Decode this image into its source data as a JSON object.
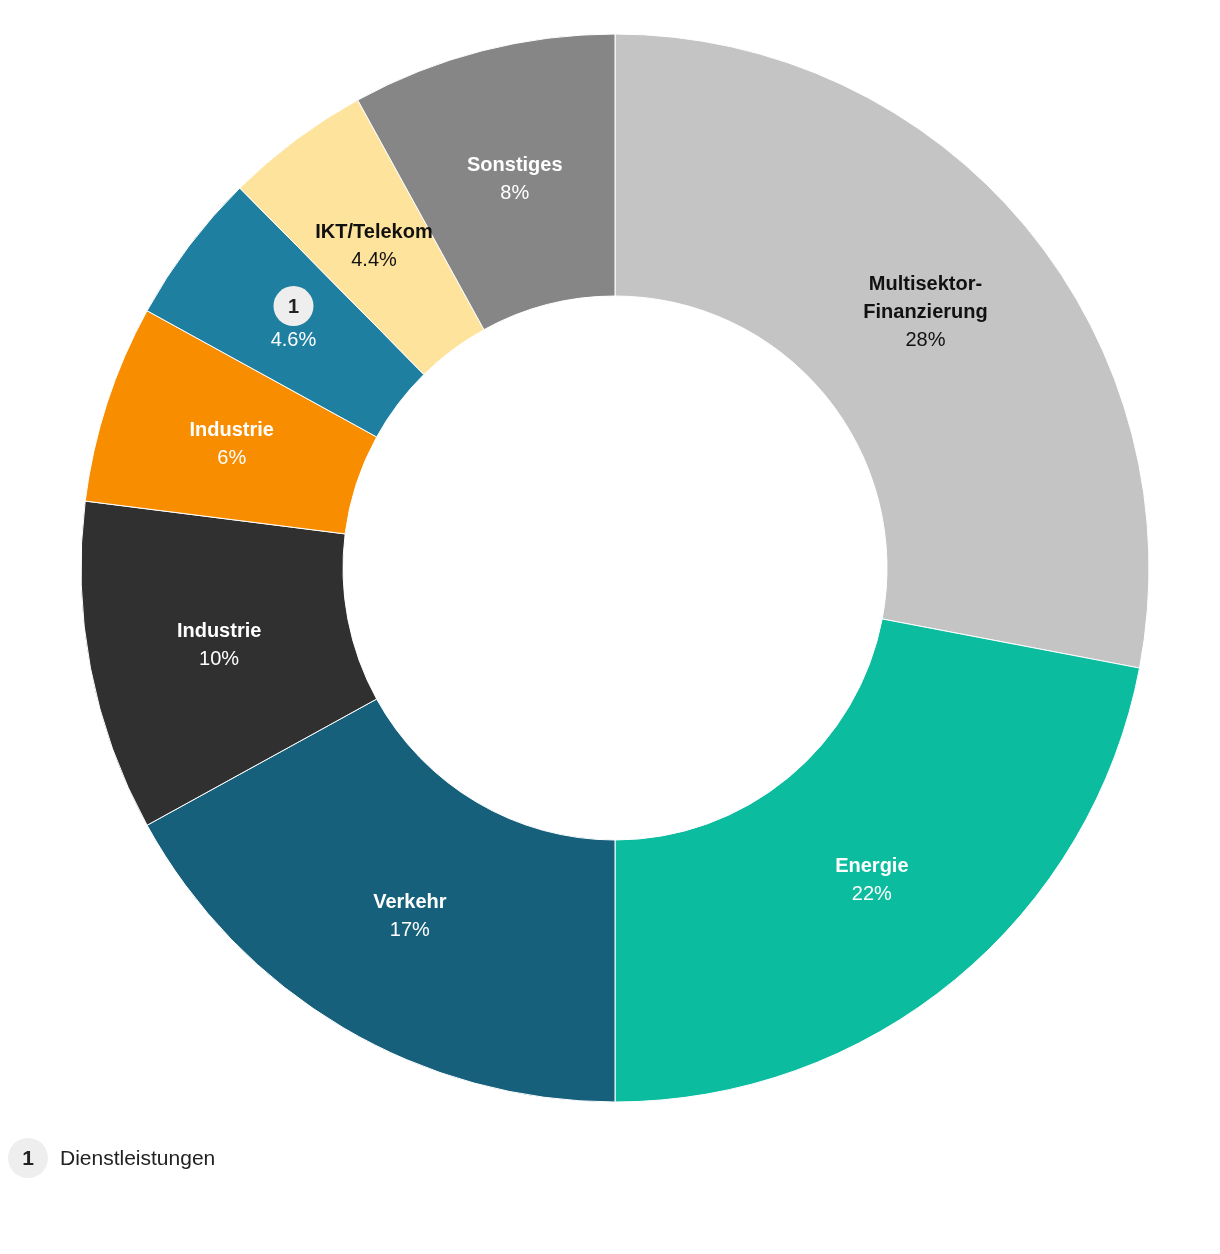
{
  "chart_data": {
    "type": "donut",
    "categories": [
      "Multisektor-Finanzierung",
      "Energie",
      "Verkehr",
      "Industrie",
      "Industrie",
      "1",
      "IKT/Telekom",
      "Sonstiges"
    ],
    "values": [
      28,
      22,
      17,
      10,
      6,
      4.6,
      4.4,
      8
    ],
    "value_labels": [
      "28%",
      "22%",
      "17%",
      "10%",
      "6%",
      "4.6%",
      "4.4%",
      "8%"
    ],
    "colors": [
      "#c4c4c4",
      "#0bbc9f",
      "#17607c",
      "#303030",
      "#f98d00",
      "#1e7fa0",
      "#fee39c",
      "#868686"
    ],
    "annotations": [
      "1 Dienstleistungen"
    ],
    "legend": false
  }
}
